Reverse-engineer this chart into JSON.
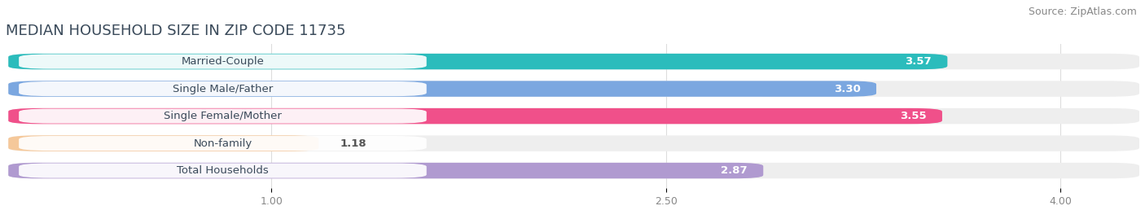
{
  "title": "MEDIAN HOUSEHOLD SIZE IN ZIP CODE 11735",
  "source": "Source: ZipAtlas.com",
  "categories": [
    "Married-Couple",
    "Single Male/Father",
    "Single Female/Mother",
    "Non-family",
    "Total Households"
  ],
  "values": [
    3.57,
    3.3,
    3.55,
    1.18,
    2.87
  ],
  "bar_colors": [
    "#2bbcbc",
    "#7ba7e0",
    "#f0508a",
    "#f5c89a",
    "#b09ad0"
  ],
  "bar_bg_color": "#eeeeee",
  "xlim_data": [
    0,
    4.3
  ],
  "xstart": 0.0,
  "xticks": [
    1.0,
    2.5,
    4.0
  ],
  "title_fontsize": 13,
  "source_fontsize": 9,
  "label_fontsize": 9.5,
  "value_fontsize": 9.5,
  "tick_fontsize": 9,
  "bar_height": 0.58,
  "bar_gap": 0.38,
  "background_color": "#ffffff",
  "title_color": "#3a4a5a",
  "source_color": "#888888",
  "tick_color": "#888888",
  "grid_color": "#dddddd"
}
